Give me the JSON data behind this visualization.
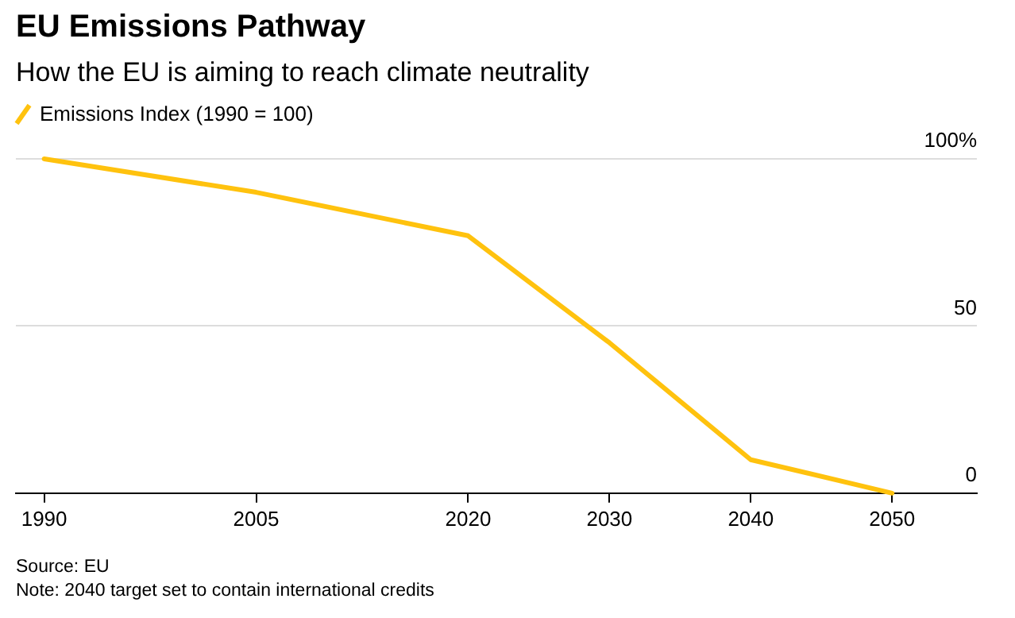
{
  "chart_data": {
    "type": "line",
    "title": "EU Emissions Pathway",
    "subtitle": "How the EU is aiming to reach climate neutrality",
    "x": [
      1990,
      2005,
      2020,
      2030,
      2040,
      2050
    ],
    "series": [
      {
        "name": "Emissions Index (1990 = 100)",
        "color": "#ffc20e",
        "values": [
          100,
          90,
          77,
          45,
          10,
          0
        ]
      }
    ],
    "xlim": [
      1988,
      2056
    ],
    "xticks": [
      1990,
      2005,
      2020,
      2030,
      2040,
      2050
    ],
    "ylim": [
      0,
      100
    ],
    "yticks": [
      0,
      50,
      {
        "value": 100,
        "label": "100%"
      }
    ],
    "grid": "y",
    "legend": "top left",
    "marker": "none",
    "line_style": "solid",
    "annotations": [
      "Source: EU",
      "Note: 2040 target set to contain international credits"
    ]
  }
}
